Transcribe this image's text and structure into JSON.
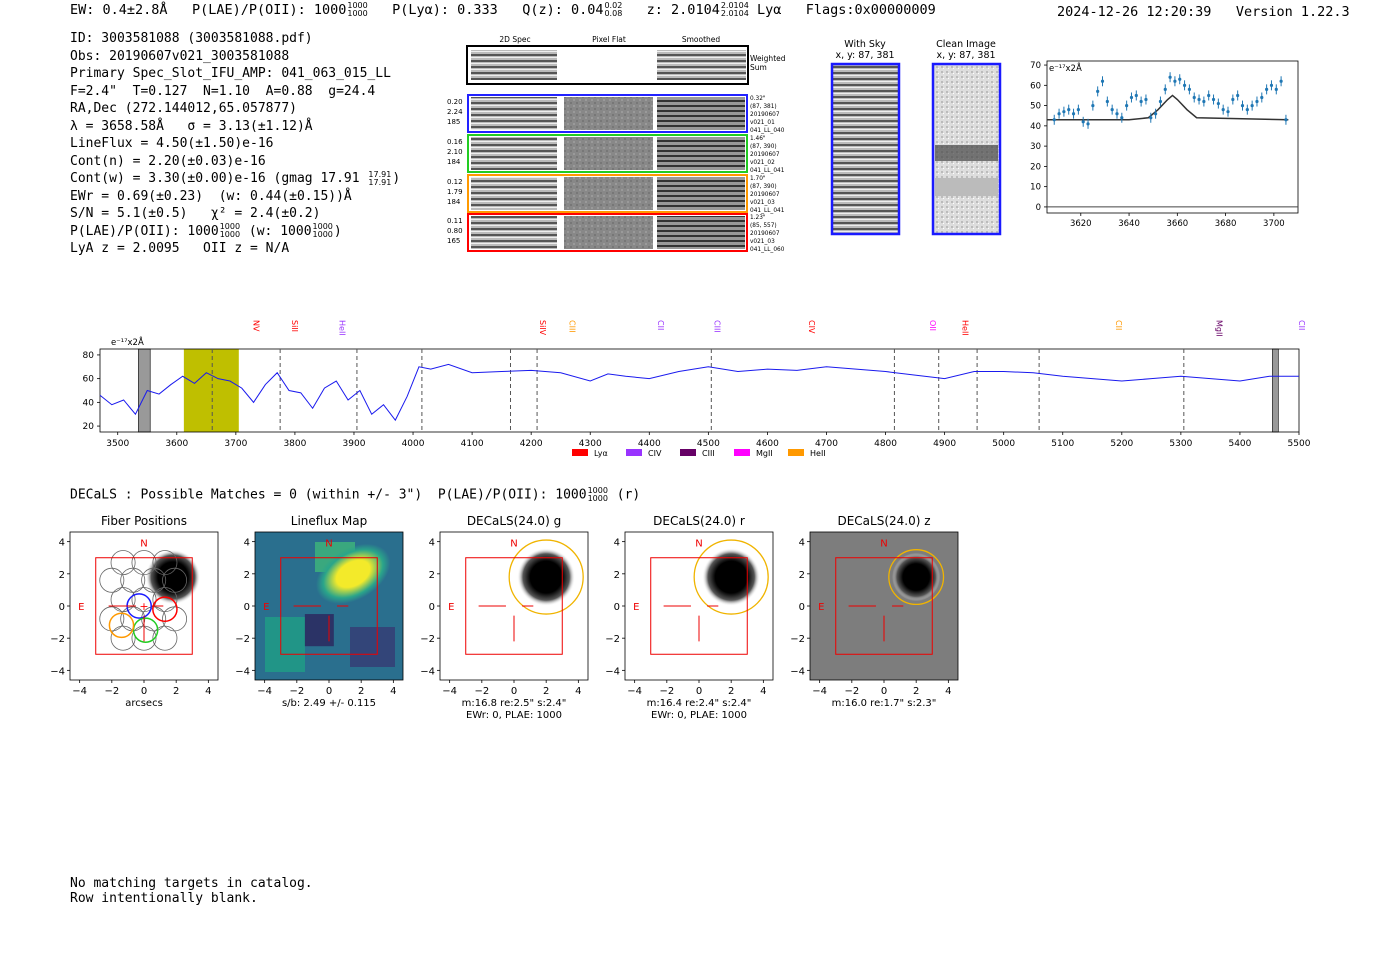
{
  "header": {
    "ew": "EW: 0.4±2.8Å",
    "plae_label": "P(LAE)/P(OII): 1000",
    "plae_sup": "1000",
    "plae_sub": "1000",
    "plya": "P(Lyα): 0.333",
    "qz_label": "Q(z): 0.04",
    "qz_sup": "0.02",
    "qz_sub": "0.08",
    "z_label": "z: 2.0104",
    "z_sup": "2.0104",
    "z_sub": "2.0104",
    "z_line": "Lyα",
    "flags": "Flags:0x00000009",
    "timestamp": "2024-12-26 12:20:39",
    "version": "Version 1.22.3"
  },
  "info": {
    "id": "ID: 3003581088 (3003581088.pdf)",
    "obs": "Obs: 20190607v021_3003581088",
    "primary": "Primary Spec_Slot_IFU_AMP: 041_063_015_LL",
    "fiber": "F=2.4\"  T=0.127  N=1.10  A=0.88  g=24.4",
    "radec": "RA,Dec (272.144012,65.057877)",
    "lambda": "λ = 3658.58Å   σ = 3.13(±1.12)Å",
    "lineflux": "LineFlux = 4.50(±1.50)e-16",
    "contn": "Cont(n) = 2.20(±0.03)e-16",
    "contw": "Cont(w) = 3.30(±0.00)e-16 (gmag 17.91",
    "contw_sup": "17.91",
    "contw_sub": "17.91",
    "contw_end": ")",
    "ewr": "EWr = 0.69(±0.23)  (w: 0.44(±0.15))Å",
    "sn": "S/N = 5.1(±0.5)   χ² = 2.4(±0.2)",
    "plae": "P(LAE)/P(OII): 1000",
    "plae_sup": "1000",
    "plae_sub": "1000",
    "plae_w": "(w: 1000",
    "plae_w_sup": "1000",
    "plae_w_sub": "1000",
    "plae_w_end": ")",
    "lya": "LyA z = 2.0095   OII z = N/A"
  },
  "cutouts": {
    "col_2d": "2D Spec",
    "col_flat": "Pixel Flat",
    "col_smooth": "Smoothed",
    "weighted": "Weighted",
    "sum": "Sum",
    "rows": [
      {
        "left": [
          "0.20",
          "2.24",
          "185"
        ],
        "right": [
          "0.32\"",
          "(87, 381)",
          "20190607",
          "v021_01",
          "041_LL_040"
        ],
        "color": "#2222ff"
      },
      {
        "left": [
          "0.16",
          "2.10",
          "184"
        ],
        "right": [
          "1.46\"",
          "(87, 390)",
          "20190607",
          "v021_02",
          "041_LL_041"
        ],
        "color": "#22cc22"
      },
      {
        "left": [
          "0.12",
          "1.79",
          "184"
        ],
        "right": [
          "1.70\"",
          "(87, 390)",
          "20190607",
          "v021_03",
          "041_LL_041"
        ],
        "color": "#ff9900"
      },
      {
        "left": [
          "0.11",
          "0.80",
          "165"
        ],
        "right": [
          "1.23\"",
          "(85, 557)",
          "20190607",
          "v021_03",
          "041_LL_060"
        ],
        "color": "#ff0000"
      }
    ],
    "with_sky": "With Sky",
    "with_sky_xy": "x, y: 87, 381",
    "clean": "Clean Image",
    "clean_xy": "x, y: 87, 381"
  },
  "zoom_chart": {
    "unit": "e⁻¹⁷x2Å",
    "x_ticks": [
      "3620",
      "3640",
      "3660",
      "3680",
      "3700"
    ],
    "y_ticks": [
      "70",
      "60",
      "50",
      "40",
      "30",
      "20",
      "10",
      "0"
    ]
  },
  "chart_data": [
    {
      "type": "scatter",
      "title": "",
      "xlabel": "",
      "ylabel": "e⁻¹⁷x2Å",
      "xlim": [
        3606,
        3710
      ],
      "ylim": [
        -3,
        72
      ],
      "x": [
        3609,
        3611,
        3613,
        3615,
        3617,
        3619,
        3621,
        3623,
        3625,
        3627,
        3629,
        3631,
        3633,
        3635,
        3637,
        3639,
        3641,
        3643,
        3645,
        3647,
        3649,
        3651,
        3653,
        3655,
        3657,
        3659,
        3661,
        3663,
        3665,
        3667,
        3669,
        3671,
        3673,
        3675,
        3677,
        3679,
        3681,
        3683,
        3685,
        3687,
        3689,
        3691,
        3693,
        3695,
        3697,
        3699,
        3701,
        3703,
        3705
      ],
      "y": [
        43,
        46,
        47,
        48,
        46,
        48,
        42,
        41,
        50,
        57,
        62,
        52,
        48,
        46,
        44,
        50,
        54,
        55,
        52,
        53,
        44,
        46,
        52,
        58,
        64,
        62,
        63,
        60,
        58,
        54,
        53,
        52,
        55,
        53,
        51,
        48,
        47,
        53,
        55,
        50,
        48,
        50,
        52,
        54,
        58,
        60,
        58,
        62,
        43
      ],
      "model_line": {
        "x": [
          3606,
          3640,
          3648,
          3652,
          3656,
          3658,
          3660,
          3664,
          3668,
          3706
        ],
        "y": [
          43,
          43,
          44,
          48,
          53,
          55,
          53,
          48,
          44,
          43
        ]
      }
    },
    {
      "type": "line",
      "title": "",
      "ylabel": "e⁻¹⁷x2Å",
      "xlim": [
        3470,
        5500
      ],
      "ylim": [
        15,
        85
      ],
      "x_ticks": [
        "3500",
        "3600",
        "3700",
        "3800",
        "3900",
        "4000",
        "4100",
        "4200",
        "4300",
        "4400",
        "4500",
        "4600",
        "4700",
        "4800",
        "4900",
        "5000",
        "5100",
        "5200",
        "5300",
        "5400",
        "5500"
      ],
      "y_ticks": [
        "80",
        "60",
        "40",
        "20"
      ],
      "x": [
        3470,
        3490,
        3510,
        3530,
        3550,
        3570,
        3590,
        3610,
        3630,
        3650,
        3670,
        3690,
        3710,
        3730,
        3750,
        3770,
        3790,
        3810,
        3830,
        3850,
        3870,
        3890,
        3910,
        3930,
        3950,
        3970,
        3990,
        4010,
        4030,
        4060,
        4100,
        4150,
        4200,
        4250,
        4300,
        4330,
        4360,
        4400,
        4450,
        4500,
        4550,
        4600,
        4650,
        4700,
        4750,
        4800,
        4850,
        4900,
        4950,
        5000,
        5050,
        5100,
        5150,
        5200,
        5250,
        5300,
        5350,
        5400,
        5450,
        5500
      ],
      "y": [
        46,
        38,
        42,
        30,
        50,
        47,
        55,
        62,
        56,
        65,
        60,
        58,
        52,
        40,
        55,
        65,
        50,
        48,
        35,
        52,
        58,
        42,
        50,
        30,
        38,
        25,
        45,
        70,
        68,
        72,
        65,
        66,
        67,
        65,
        58,
        64,
        62,
        60,
        66,
        70,
        66,
        68,
        67,
        70,
        68,
        66,
        63,
        60,
        66,
        66,
        65,
        62,
        60,
        58,
        60,
        62,
        60,
        58,
        62,
        62
      ],
      "legend": [
        "Lyα",
        "CIV",
        "CIII",
        "MgII",
        "HeII"
      ],
      "legend_colors": [
        "#ff0000",
        "#9933ff",
        "#660066",
        "#ff00ff",
        "#ff9900"
      ],
      "emission_lines": [
        {
          "name": "NV",
          "x": 3725,
          "color": "#ff0000"
        },
        {
          "name": "SiII",
          "x": 3790,
          "color": "#ff0000"
        },
        {
          "name": "HeII",
          "x": 3870,
          "color": "#9933ff"
        },
        {
          "name": "SiIV",
          "x": 4210,
          "color": "#ff0000"
        },
        {
          "name": "CIII",
          "x": 4260,
          "color": "#ff9900"
        },
        {
          "name": "CII",
          "x": 4410,
          "color": "#9933ff"
        },
        {
          "name": "CIII",
          "x": 4505,
          "color": "#9933ff"
        },
        {
          "name": "CIV",
          "x": 4665,
          "color": "#ff0000"
        },
        {
          "name": "OII",
          "x": 4870,
          "color": "#ff00ff"
        },
        {
          "name": "HeII",
          "x": 4925,
          "color": "#ff0000"
        },
        {
          "name": "CII",
          "x": 5185,
          "color": "#ff9900"
        },
        {
          "name": "MgII",
          "x": 5355,
          "color": "#660066"
        },
        {
          "name": "CII",
          "x": 5495,
          "color": "#9933ff"
        }
      ],
      "dashed_x": [
        3660,
        3775,
        3905,
        4015,
        4165,
        4210,
        4505,
        4815,
        4890,
        4955,
        5060,
        5305
      ],
      "highlight": [
        3612,
        3705
      ]
    }
  ],
  "decals": {
    "title": "DECaLS : Possible Matches = 0 (within +/- 3\")  P(LAE)/P(OII): 1000",
    "title_sup": "1000",
    "title_sub": "1000",
    "title_end": "(r)",
    "ticks": [
      "4",
      "2",
      "0",
      "−2",
      "−4"
    ],
    "xticks": [
      "−4",
      "−2",
      "0",
      "2",
      "4"
    ],
    "north": "N",
    "east": "E",
    "panels": [
      {
        "title": "Fiber Positions",
        "caption1": "arcsecs",
        "caption2": ""
      },
      {
        "title": "Lineflux Map",
        "caption1": "s/b: 2.49 +/- 0.115",
        "caption2": ""
      },
      {
        "title": "DECaLS(24.0) g",
        "caption1": "m:16.8  re:2.5\"  s:2.4\"",
        "caption2": "EWr: 0, PLAE: 1000"
      },
      {
        "title": "DECaLS(24.0) r",
        "caption1": "m:16.4  re:2.4\"  s:2.4\"",
        "caption2": "EWr: 0, PLAE: 1000"
      },
      {
        "title": "DECaLS(24.0) z",
        "caption1": "m:16.0  re:1.7\"  s:2.3\"",
        "caption2": ""
      }
    ]
  },
  "footer": {
    "line1": "No matching targets in catalog.",
    "line2": "Row intentionally blank."
  }
}
